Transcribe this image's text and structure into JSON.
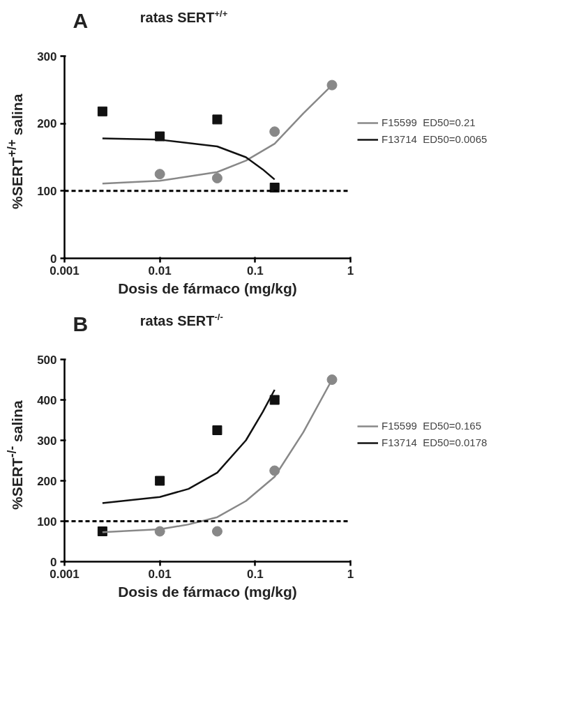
{
  "chart_data": [
    {
      "type": "scatter",
      "title": "ratas SERT$^{+/+}$",
      "annotations": [
        "A"
      ],
      "xlabel": "Dosis de fármaco (mg/kg)",
      "ylabel": "%SERT$^{+/+}$ salina",
      "log": "x",
      "xlim": [
        0.001,
        1
      ],
      "xticks": [
        0.001,
        0.01,
        0.1,
        1
      ],
      "ylim": [
        0,
        300
      ],
      "yticks": [
        0,
        100,
        200,
        300
      ],
      "grid": false,
      "legend": "right",
      "ref_lines": [
        {
          "axis": "y",
          "value": 100,
          "label": null,
          "color": "#000000",
          "line_style": "dashed"
        }
      ],
      "series": [
        {
          "color": "#888888",
          "marker": "circle",
          "x": [
            0.01,
            0.04,
            0.16,
            0.64
          ],
          "values": [
            125,
            119,
            188,
            257
          ]
        },
        {
          "color": "#111111",
          "marker": "square",
          "x": [
            0.0025,
            0.01,
            0.04,
            0.16
          ],
          "values": [
            218,
            181,
            206,
            105
          ]
        },
        {
          "type": "line",
          "name": "F15599  ED50=0.21",
          "color": "#888888",
          "x": [
            0.0025,
            0.01,
            0.04,
            0.08,
            0.16,
            0.32,
            0.64
          ],
          "values": [
            111,
            115,
            128,
            145,
            170,
            215,
            257
          ]
        },
        {
          "type": "line",
          "name": "F13714  ED50=0.0065",
          "color": "#111111",
          "x": [
            0.0025,
            0.01,
            0.04,
            0.08,
            0.12,
            0.16
          ],
          "values": [
            178,
            176,
            166,
            150,
            132,
            117
          ]
        }
      ]
    },
    {
      "type": "scatter",
      "title": "ratas SERT$^{-/-}$",
      "annotations": [
        "B"
      ],
      "xlabel": "Dosis de fármaco (mg/kg)",
      "ylabel": "%SERT$^{-/-}$ salina",
      "log": "x",
      "xlim": [
        0.001,
        1
      ],
      "xticks": [
        0.001,
        0.01,
        0.1,
        1
      ],
      "ylim": [
        0,
        500
      ],
      "yticks": [
        0,
        100,
        200,
        300,
        400,
        500
      ],
      "grid": false,
      "legend": "right",
      "ref_lines": [
        {
          "axis": "y",
          "value": 100,
          "label": null,
          "color": "#000000",
          "line_style": "dashed"
        }
      ],
      "series": [
        {
          "color": "#888888",
          "marker": "circle",
          "x": [
            0.01,
            0.04,
            0.16,
            0.64
          ],
          "values": [
            75,
            75,
            225,
            450
          ]
        },
        {
          "color": "#111111",
          "marker": "square",
          "x": [
            0.0025,
            0.01,
            0.04,
            0.16
          ],
          "values": [
            75,
            200,
            325,
            400
          ]
        },
        {
          "type": "line",
          "name": "F15599  ED50=0.165",
          "color": "#888888",
          "x": [
            0.0025,
            0.01,
            0.02,
            0.04,
            0.08,
            0.16,
            0.32,
            0.64
          ],
          "values": [
            73,
            80,
            92,
            110,
            150,
            210,
            320,
            450
          ]
        },
        {
          "type": "line",
          "name": "F13714  ED50=0.0178",
          "color": "#111111",
          "x": [
            0.0025,
            0.01,
            0.02,
            0.04,
            0.08,
            0.12,
            0.16
          ],
          "values": [
            145,
            160,
            180,
            220,
            300,
            370,
            425
          ]
        }
      ]
    }
  ]
}
